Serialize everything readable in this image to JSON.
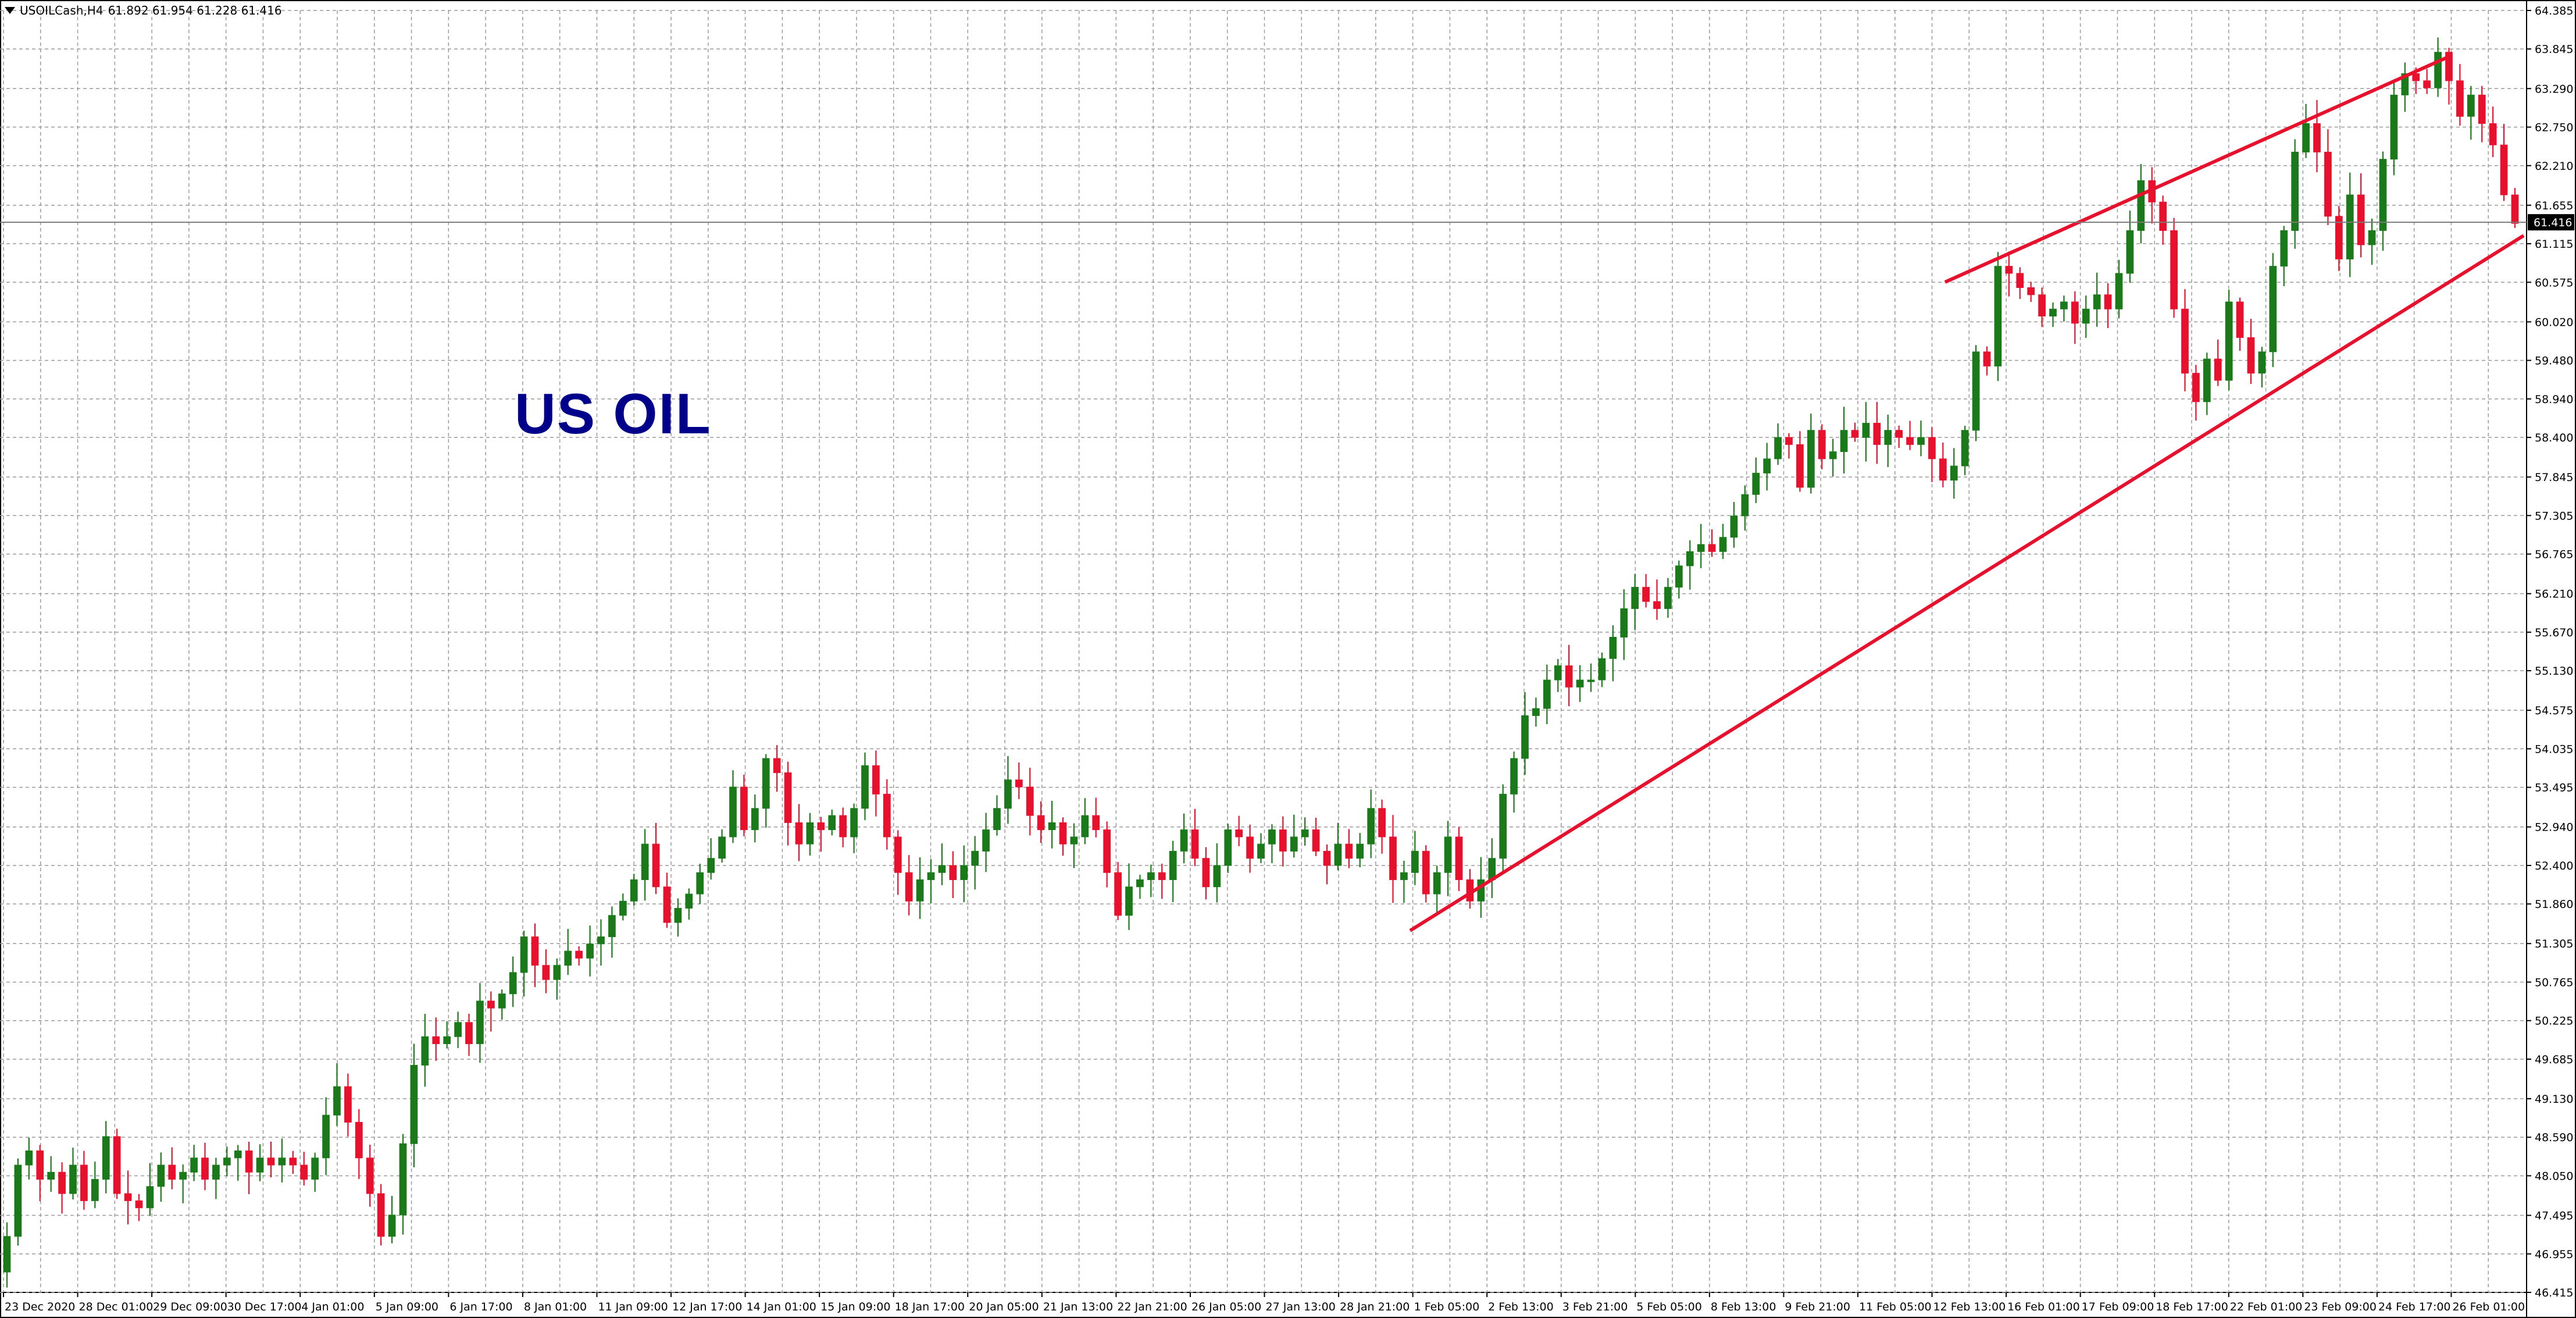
{
  "header": {
    "symbol": "USOILCash,H4",
    "ohlc": "61.892 61.954 61.228 61.416"
  },
  "watermark": "US OIL",
  "colors": {
    "bull": "#1a7a1a",
    "bear": "#e8112d",
    "grid": "#9a9a9a",
    "trendline": "#e8112d",
    "watermark": "#00008b",
    "current_price_bg": "#000000"
  },
  "chart_data": {
    "type": "candlestick",
    "symbol": "USOILCash",
    "timeframe": "H4",
    "ylim": [
      46.415,
      64.385
    ],
    "y_ticks": [
      "64.385",
      "63.845",
      "63.290",
      "62.750",
      "62.210",
      "61.655",
      "61.115",
      "60.575",
      "60.020",
      "59.480",
      "58.940",
      "58.400",
      "57.845",
      "57.305",
      "56.765",
      "56.210",
      "55.670",
      "55.130",
      "54.575",
      "54.035",
      "53.495",
      "52.940",
      "52.400",
      "51.860",
      "51.305",
      "50.765",
      "50.225",
      "49.685",
      "49.130",
      "48.590",
      "48.050",
      "47.495",
      "46.955",
      "46.415"
    ],
    "x_labels": [
      "23 Dec 2020",
      "28 Dec 01:00",
      "29 Dec 09:00",
      "30 Dec 17:00",
      "4 Jan 01:00",
      "5 Jan 09:00",
      "6 Jan 17:00",
      "8 Jan 01:00",
      "11 Jan 09:00",
      "12 Jan 17:00",
      "14 Jan 01:00",
      "15 Jan 09:00",
      "18 Jan 17:00",
      "20 Jan 05:00",
      "21 Jan 13:00",
      "22 Jan 21:00",
      "26 Jan 05:00",
      "27 Jan 13:00",
      "28 Jan 21:00",
      "1 Feb 05:00",
      "2 Feb 13:00",
      "3 Feb 21:00",
      "5 Feb 05:00",
      "8 Feb 13:00",
      "9 Feb 21:00",
      "11 Feb 05:00",
      "12 Feb 13:00",
      "16 Feb 01:00",
      "17 Feb 09:00",
      "18 Feb 17:00",
      "22 Feb 01:00",
      "23 Feb 09:00",
      "24 Feb 17:00",
      "26 Feb 01:00"
    ],
    "current_price": "61.416",
    "closes": [
      47.2,
      48.2,
      48.4,
      48.0,
      48.1,
      47.8,
      48.2,
      47.7,
      48.0,
      48.6,
      47.8,
      47.7,
      47.6,
      47.9,
      48.2,
      48.0,
      48.1,
      48.3,
      48.0,
      48.2,
      48.3,
      48.4,
      48.1,
      48.3,
      48.2,
      48.3,
      48.2,
      48.0,
      48.3,
      48.9,
      49.3,
      48.8,
      48.3,
      47.8,
      47.2,
      47.5,
      48.5,
      49.6,
      50.0,
      49.9,
      50.0,
      50.2,
      49.9,
      50.5,
      50.4,
      50.6,
      50.9,
      51.4,
      51.0,
      50.8,
      51.0,
      51.2,
      51.1,
      51.3,
      51.4,
      51.7,
      51.9,
      52.2,
      52.7,
      52.1,
      51.6,
      51.8,
      52.0,
      52.3,
      52.5,
      52.8,
      53.5,
      52.9,
      53.2,
      53.9,
      53.7,
      53.0,
      52.7,
      53.0,
      52.9,
      53.1,
      52.8,
      53.2,
      53.8,
      53.4,
      52.8,
      52.3,
      51.9,
      52.2,
      52.3,
      52.4,
      52.2,
      52.4,
      52.6,
      52.9,
      53.2,
      53.6,
      53.5,
      53.1,
      52.9,
      53.0,
      52.7,
      52.8,
      53.1,
      52.9,
      52.3,
      51.7,
      52.1,
      52.2,
      52.3,
      52.2,
      52.6,
      52.9,
      52.5,
      52.1,
      52.4,
      52.9,
      52.8,
      52.5,
      52.7,
      52.9,
      52.6,
      52.8,
      52.9,
      52.6,
      52.4,
      52.7,
      52.5,
      52.7,
      53.2,
      52.8,
      52.2,
      52.3,
      52.6,
      52.0,
      52.3,
      52.8,
      52.2,
      51.9,
      52.2,
      52.5,
      53.4,
      53.9,
      54.5,
      54.6,
      55.0,
      55.2,
      54.9,
      55.0,
      55.0,
      55.3,
      55.6,
      56.0,
      56.3,
      56.1,
      56.0,
      56.3,
      56.6,
      56.8,
      56.9,
      56.8,
      57.0,
      57.3,
      57.6,
      57.9,
      58.1,
      58.4,
      58.3,
      57.7,
      58.5,
      58.1,
      58.2,
      58.5,
      58.4,
      58.6,
      58.3,
      58.5,
      58.4,
      58.3,
      58.4,
      58.1,
      57.8,
      58.0,
      58.5,
      59.6,
      59.4,
      60.8,
      60.7,
      60.5,
      60.4,
      60.1,
      60.2,
      60.3,
      60.0,
      60.2,
      60.4,
      60.2,
      60.7,
      61.3,
      62.0,
      61.7,
      61.3,
      60.2,
      59.3,
      58.9,
      59.5,
      59.2,
      60.3,
      59.8,
      59.3,
      59.6,
      60.8,
      61.3,
      62.4,
      62.8,
      62.4,
      61.5,
      60.9,
      61.8,
      61.1,
      61.3,
      62.3,
      63.2,
      63.5,
      63.4,
      63.3,
      63.8,
      63.4,
      62.9,
      63.2,
      62.8,
      62.5,
      61.8,
      61.4
    ]
  }
}
